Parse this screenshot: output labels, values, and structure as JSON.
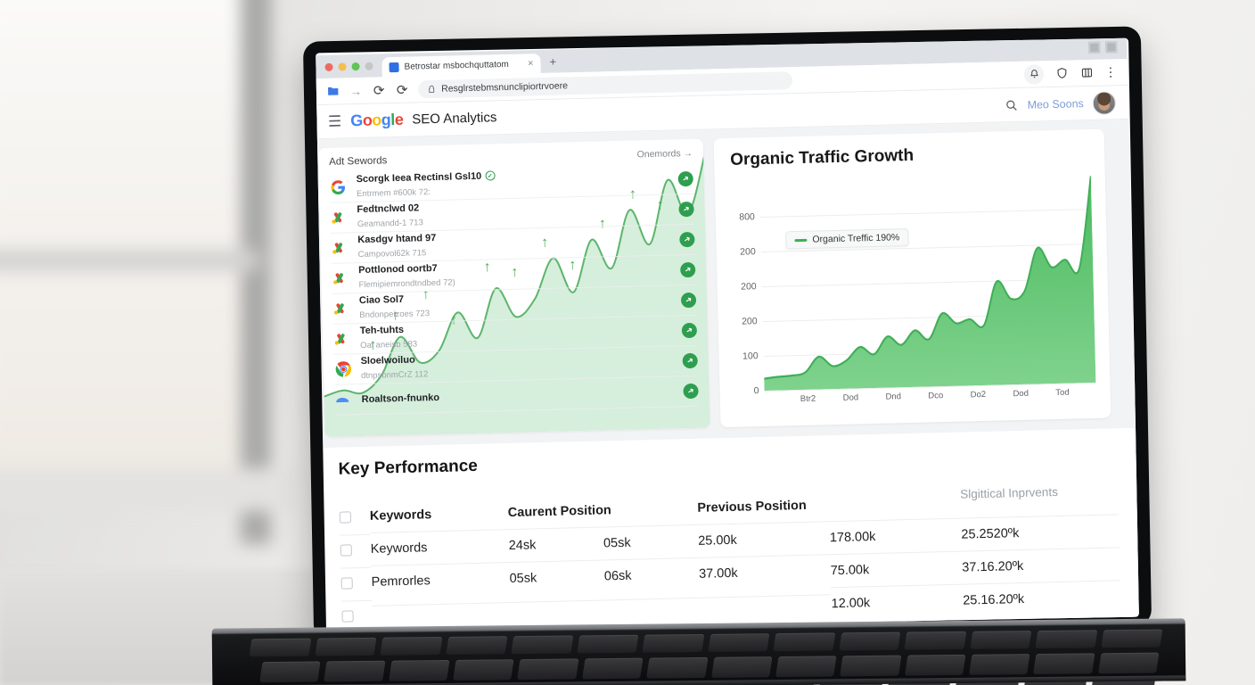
{
  "window": {
    "dots": [
      "#ee6a5f",
      "#f5bd4f",
      "#61c454",
      "#c6c6c6"
    ]
  },
  "browser": {
    "tab_title": "Betrostar msbochquttatom",
    "tab_close": "×",
    "new_tab": "+",
    "forward_icon": "→",
    "reload_icon": "⟳",
    "url": "Resglrstebmsnunclipiortrvoere",
    "kebab_icon": "⋮"
  },
  "appbar": {
    "menu_icon": "☰",
    "logo_letters": [
      {
        "ch": "G",
        "color": "#4285F4"
      },
      {
        "ch": "o",
        "color": "#EA4335"
      },
      {
        "ch": "o",
        "color": "#FBBC05"
      },
      {
        "ch": "g",
        "color": "#4285F4"
      },
      {
        "ch": "l",
        "color": "#34A853"
      },
      {
        "ch": "e",
        "color": "#EA4335"
      }
    ],
    "title": "SEO Analytics",
    "user_name": "Meo Soons"
  },
  "keywords_panel": {
    "title": "Adt Sewords",
    "action": "Onemords →",
    "items": [
      {
        "icon": "google-g",
        "title": "Scorgk Ieea Rectinsl Gsl10",
        "title_badge": "✓",
        "subtitle": "Entrmem #600k 72:"
      },
      {
        "icon": "ads",
        "title": "Fedtnclwd 02",
        "title_badge": "",
        "subtitle": "Geamandd-1 713"
      },
      {
        "icon": "ads",
        "title": "Kasdgv htand 97",
        "title_badge": "",
        "subtitle": "Campovol62k 715"
      },
      {
        "icon": "ads",
        "title": "Pottlonod oortb7",
        "title_badge": "",
        "subtitle": "Flemipiemrondtndbed 72)"
      },
      {
        "icon": "ads",
        "title": "Ciao Sol7",
        "title_badge": "",
        "subtitle": "Bndonpeizoes 723"
      },
      {
        "icon": "ads",
        "title": "Teh-tuhts",
        "title_badge": "",
        "subtitle": "Oal aneisb 583"
      },
      {
        "icon": "chrome",
        "title": "Sloelwoiluo",
        "title_badge": "",
        "subtitle": "dtnpsbnmCrZ 112"
      },
      {
        "icon": "blue-arc",
        "title": "Roaltson-fnunko",
        "title_badge": "",
        "subtitle": ""
      }
    ]
  },
  "chart_data": [
    {
      "id": "organic-traffic",
      "type": "area",
      "title": "Organic Traffic Growth",
      "legend": [
        "Organic Treffic 190%"
      ],
      "legend_position": "top-left",
      "x_labels": [
        "Btr2",
        "Dod",
        "Dnd",
        "Dco",
        "Do2",
        "Dod",
        "Tod"
      ],
      "y_tick_labels_top_to_bottom": [
        "800",
        "200",
        "200",
        "200",
        "100",
        "0"
      ],
      "ylim": [
        0,
        984
      ],
      "grid": true,
      "series": [
        {
          "name": "Organic Treffic",
          "values": [
            55,
            62,
            66,
            80,
            150,
            105,
            130,
            190,
            155,
            235,
            195,
            260,
            218,
            335,
            288,
            305,
            275,
            475,
            395,
            428,
            625,
            535,
            568,
            525,
            950
          ]
        }
      ],
      "line_color": "#3fae58",
      "fill_top_color": "#4cbb5f",
      "fill_bottom_color": "#7fd28d"
    },
    {
      "id": "keywords-trend",
      "type": "area",
      "title": "",
      "x_labels": [],
      "ylim": [
        0,
        100
      ],
      "grid": false,
      "series": [
        {
          "name": "trend",
          "values": [
            14,
            16,
            15,
            21,
            34,
            25,
            29,
            42,
            33,
            50,
            40,
            46,
            60,
            48,
            66,
            56,
            76,
            64,
            86,
            74,
            96
          ]
        }
      ],
      "line_color": "#5cb56c",
      "fill_top_color": "rgba(120,200,140,0.30)",
      "fill_bottom_color": "rgba(160,220,170,0.10)",
      "annotations": "scattered green up arrows"
    }
  ],
  "kp_table": {
    "title": "Key Performance",
    "headers": {
      "keywords": "Keywords",
      "current": "Caurent Position",
      "previous": "Previous Position",
      "improvements": "Slgittical Inprvents"
    },
    "rows": [
      [
        "Keywords",
        "24sk",
        "05sk",
        "25.00k",
        "178.00k",
        "25.2520ºk"
      ],
      [
        "Pemrorles",
        "05sk",
        "06sk",
        "37.00k",
        "75.00k",
        "37.16.20ºk"
      ],
      [
        "",
        "",
        "",
        "",
        "12.00k",
        "25.16.20ºk"
      ]
    ]
  },
  "icons": {
    "up-arrow": "↑",
    "badge-arrow": "➜",
    "search-icon": "magnifier",
    "alert-icon": "bell",
    "shield-icon": "shield",
    "panels-icon": "columns-grid",
    "bookmark-icon": "blue-folder"
  },
  "colors": {
    "accent_green": "#3fae58",
    "badge_green": "#2e9e4f",
    "google_blue": "#4285F4",
    "google_red": "#EA4335",
    "google_yellow": "#FBBC05",
    "google_green": "#34A853",
    "user_link_blue": "#7c9ed9",
    "muted_gray": "#9aa0a6"
  }
}
